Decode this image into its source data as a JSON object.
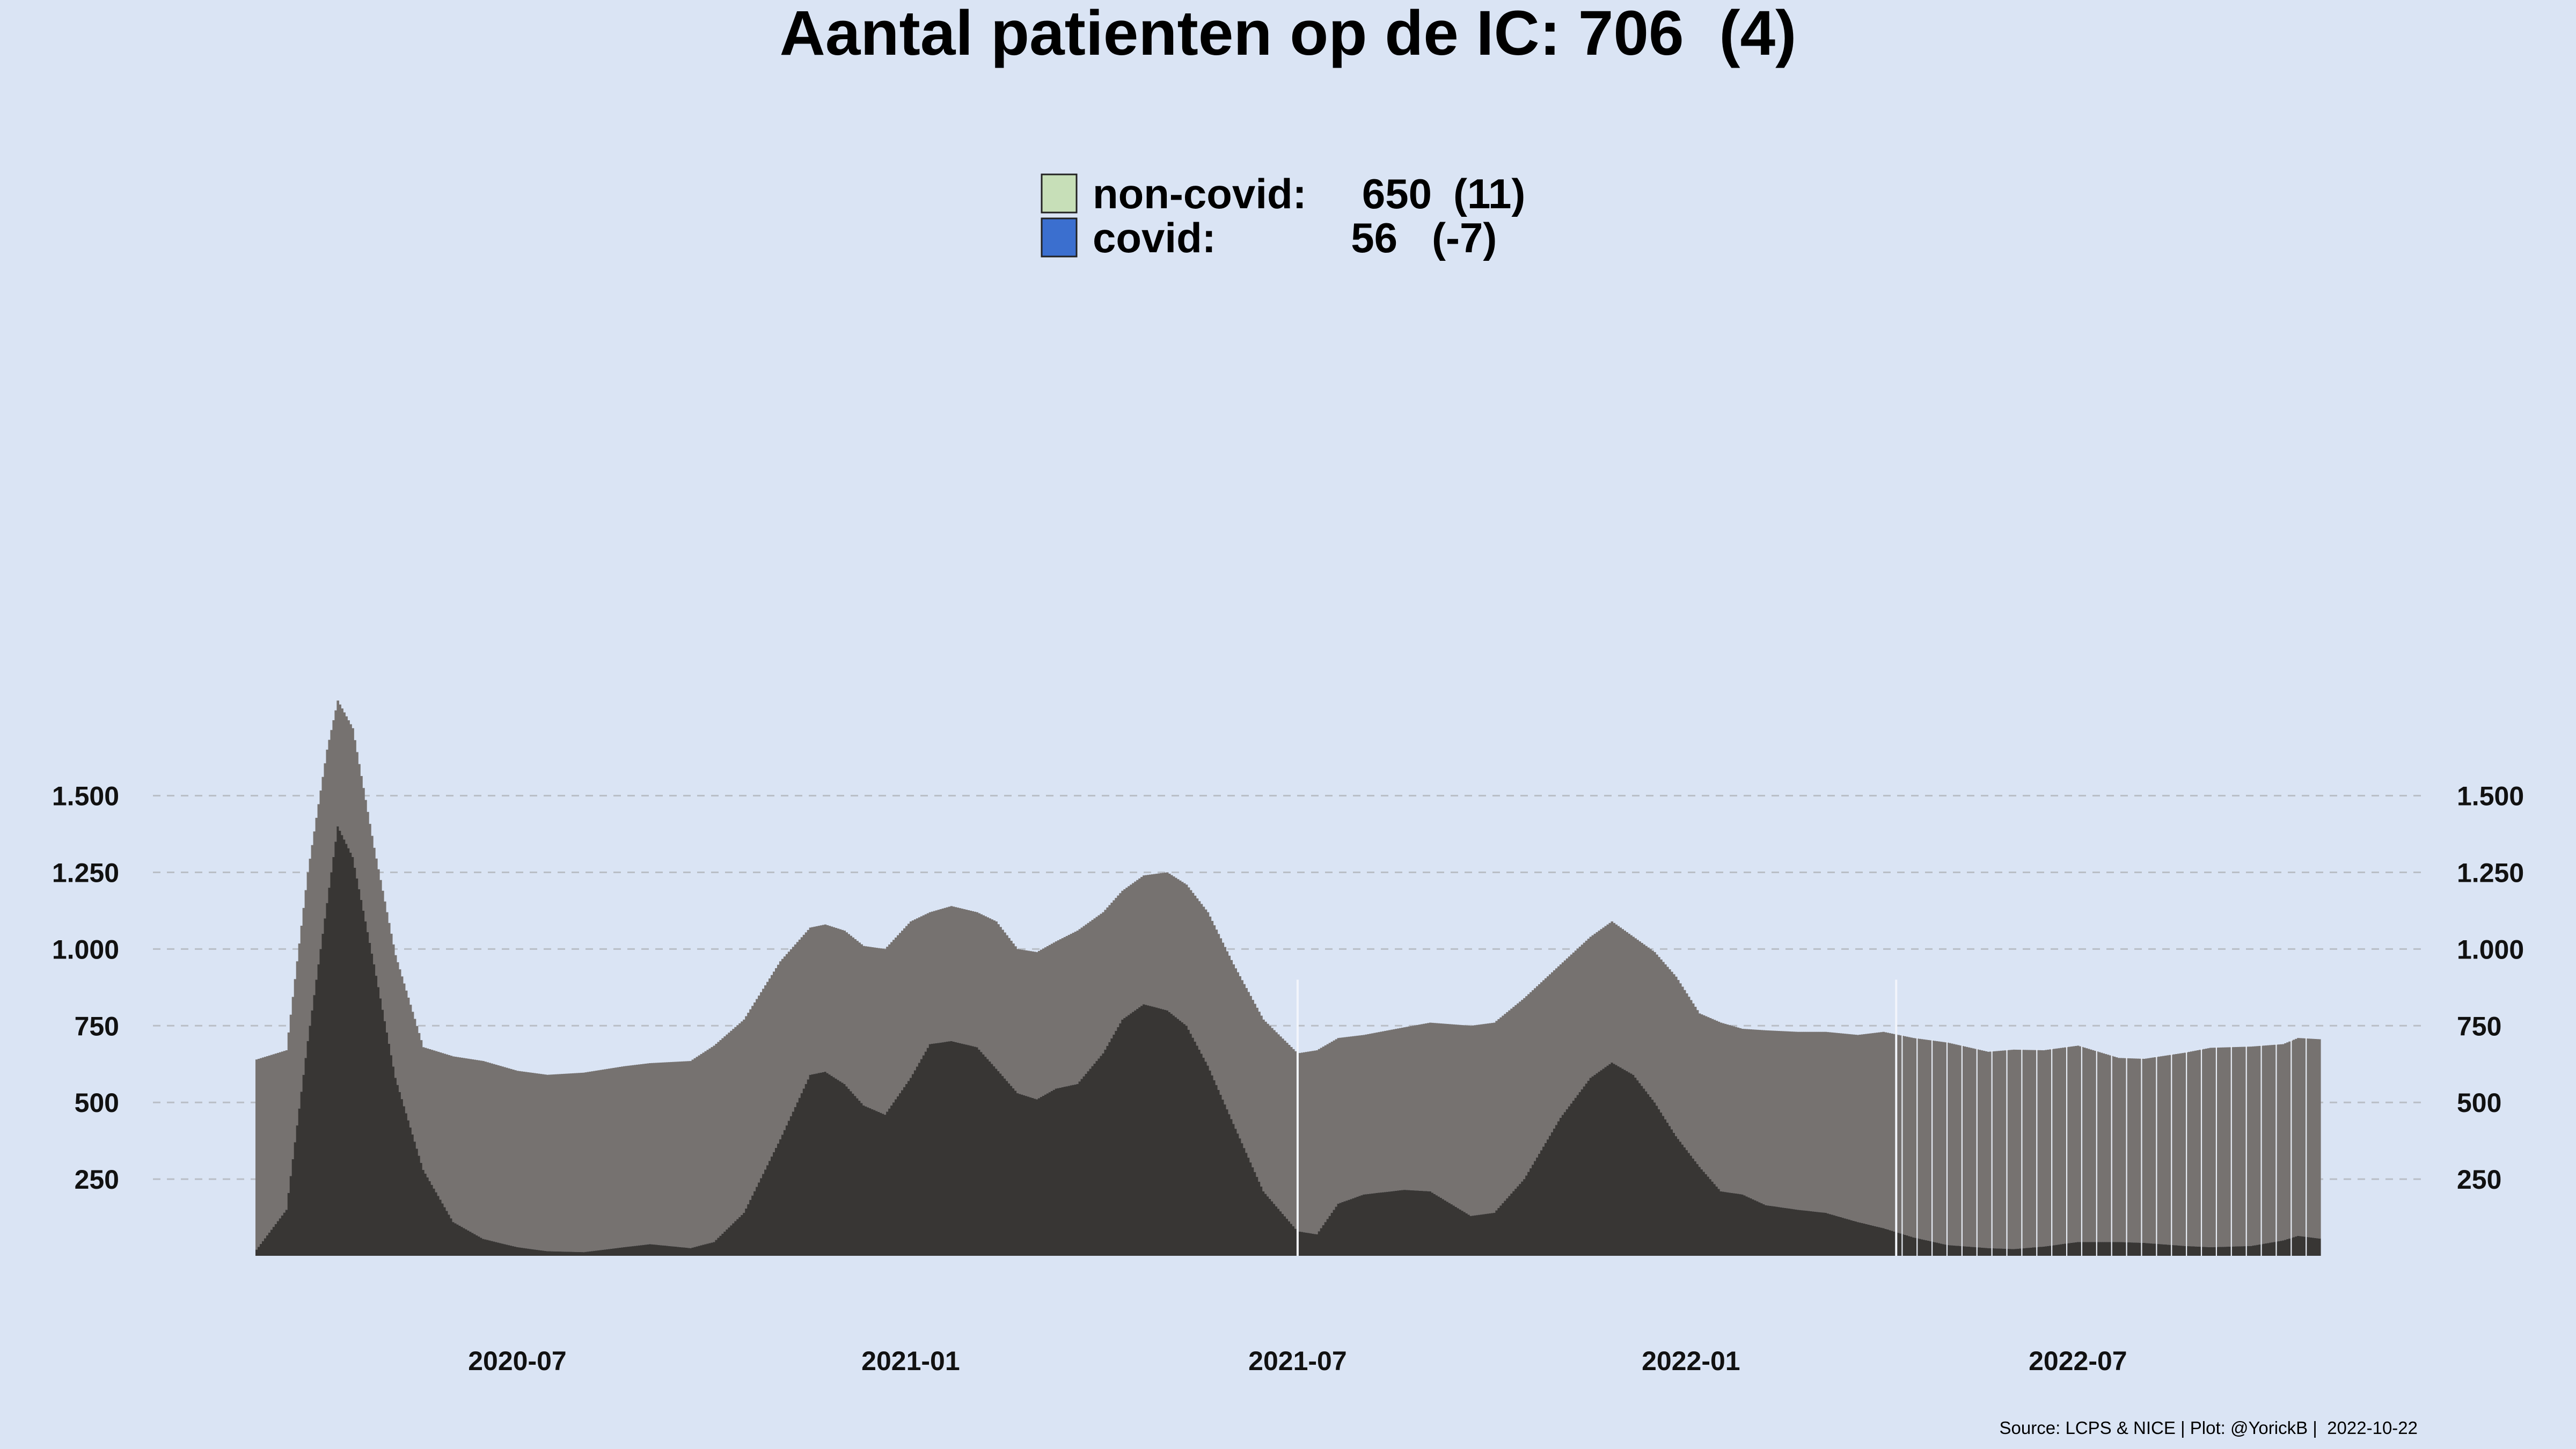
{
  "chart_data": {
    "type": "bar",
    "stacked": true,
    "title": "Aantal patienten op de IC: 706  (4)",
    "xlabel": "",
    "ylabel": "",
    "ylim": [
      0,
      1800
    ],
    "y_ticks": [
      250,
      500,
      750,
      1000,
      1250,
      1500
    ],
    "y_tick_labels": [
      "250",
      "500",
      "750",
      "1.000",
      "1.250",
      "1.500"
    ],
    "x_ticks": [
      "2020-07-01",
      "2021-01-01",
      "2021-07-01",
      "2022-01-01",
      "2022-07-01"
    ],
    "x_tick_labels": [
      "2020-07",
      "2021-01",
      "2021-07",
      "2022-01",
      "2022-07"
    ],
    "x_start": "2020-03-01",
    "x_end": "2022-10-22",
    "grid": true,
    "legend_position": "top-center",
    "caption": "Source: LCPS & NICE | Plot: @YorickB |  2022-10-22",
    "legend": [
      {
        "label": "non-covid:",
        "value": "650",
        "change": "(11)",
        "color": "#c7dfb8"
      },
      {
        "label": "covid:",
        "value": "56",
        "change": "(-7)",
        "color": "#3b6fcf"
      }
    ],
    "series": [
      {
        "name": "covid",
        "color": "#383634",
        "knots": [
          [
            "2020-03-01",
            20
          ],
          [
            "2020-03-15",
            150
          ],
          [
            "2020-03-25",
            700
          ],
          [
            "2020-04-03",
            1150
          ],
          [
            "2020-04-08",
            1400
          ],
          [
            "2020-04-15",
            1300
          ],
          [
            "2020-04-25",
            950
          ],
          [
            "2020-05-05",
            580
          ],
          [
            "2020-05-18",
            280
          ],
          [
            "2020-06-01",
            110
          ],
          [
            "2020-06-15",
            55
          ],
          [
            "2020-07-01",
            28
          ],
          [
            "2020-07-15",
            15
          ],
          [
            "2020-08-01",
            12
          ],
          [
            "2020-08-20",
            28
          ],
          [
            "2020-09-01",
            38
          ],
          [
            "2020-09-20",
            25
          ],
          [
            "2020-10-01",
            45
          ],
          [
            "2020-10-15",
            140
          ],
          [
            "2020-11-01",
            380
          ],
          [
            "2020-11-15",
            590
          ],
          [
            "2020-11-22",
            600
          ],
          [
            "2020-12-01",
            560
          ],
          [
            "2020-12-10",
            490
          ],
          [
            "2020-12-20",
            460
          ],
          [
            "2021-01-01",
            580
          ],
          [
            "2021-01-10",
            690
          ],
          [
            "2021-01-20",
            700
          ],
          [
            "2021-02-01",
            680
          ],
          [
            "2021-02-10",
            610
          ],
          [
            "2021-02-20",
            530
          ],
          [
            "2021-03-01",
            510
          ],
          [
            "2021-03-10",
            545
          ],
          [
            "2021-03-20",
            560
          ],
          [
            "2021-04-01",
            660
          ],
          [
            "2021-04-10",
            770
          ],
          [
            "2021-04-20",
            820
          ],
          [
            "2021-05-01",
            800
          ],
          [
            "2021-05-10",
            750
          ],
          [
            "2021-05-20",
            620
          ],
          [
            "2021-06-01",
            430
          ],
          [
            "2021-06-15",
            210
          ],
          [
            "2021-07-01",
            80
          ],
          [
            "2021-07-10",
            70
          ],
          [
            "2021-07-20",
            170
          ],
          [
            "2021-08-01",
            200
          ],
          [
            "2021-08-20",
            215
          ],
          [
            "2021-09-01",
            210
          ],
          [
            "2021-09-20",
            130
          ],
          [
            "2021-10-01",
            140
          ],
          [
            "2021-10-15",
            250
          ],
          [
            "2021-11-01",
            450
          ],
          [
            "2021-11-15",
            580
          ],
          [
            "2021-11-25",
            630
          ],
          [
            "2021-12-05",
            590
          ],
          [
            "2021-12-15",
            500
          ],
          [
            "2021-12-25",
            390
          ],
          [
            "2022-01-05",
            290
          ],
          [
            "2022-01-15",
            210
          ],
          [
            "2022-01-25",
            200
          ],
          [
            "2022-02-05",
            165
          ],
          [
            "2022-02-20",
            150
          ],
          [
            "2022-03-05",
            140
          ],
          [
            "2022-03-20",
            110
          ],
          [
            "2022-04-01",
            90
          ],
          [
            "2022-04-15",
            60
          ],
          [
            "2022-05-01",
            35
          ],
          [
            "2022-05-20",
            25
          ],
          [
            "2022-06-01",
            22
          ],
          [
            "2022-06-15",
            30
          ],
          [
            "2022-07-01",
            45
          ],
          [
            "2022-07-20",
            45
          ],
          [
            "2022-08-01",
            42
          ],
          [
            "2022-08-20",
            32
          ],
          [
            "2022-09-01",
            28
          ],
          [
            "2022-09-20",
            32
          ],
          [
            "2022-10-05",
            50
          ],
          [
            "2022-10-12",
            65
          ],
          [
            "2022-10-22",
            56
          ]
        ]
      },
      {
        "name": "non-covid",
        "color": "#767270",
        "knots": [
          [
            "2020-03-01",
            620
          ],
          [
            "2020-03-15",
            520
          ],
          [
            "2020-03-25",
            550
          ],
          [
            "2020-04-03",
            500
          ],
          [
            "2020-04-08",
            410
          ],
          [
            "2020-04-15",
            420
          ],
          [
            "2020-04-25",
            380
          ],
          [
            "2020-05-05",
            400
          ],
          [
            "2020-05-18",
            400
          ],
          [
            "2020-06-01",
            540
          ],
          [
            "2020-06-15",
            580
          ],
          [
            "2020-07-01",
            575
          ],
          [
            "2020-07-15",
            575
          ],
          [
            "2020-08-01",
            585
          ],
          [
            "2020-08-20",
            590
          ],
          [
            "2020-09-01",
            590
          ],
          [
            "2020-09-20",
            610
          ],
          [
            "2020-10-01",
            640
          ],
          [
            "2020-10-15",
            630
          ],
          [
            "2020-11-01",
            580
          ],
          [
            "2020-11-15",
            480
          ],
          [
            "2020-11-22",
            480
          ],
          [
            "2020-12-01",
            500
          ],
          [
            "2020-12-10",
            520
          ],
          [
            "2020-12-20",
            540
          ],
          [
            "2021-01-01",
            510
          ],
          [
            "2021-01-10",
            430
          ],
          [
            "2021-01-20",
            440
          ],
          [
            "2021-02-01",
            440
          ],
          [
            "2021-02-10",
            480
          ],
          [
            "2021-02-20",
            470
          ],
          [
            "2021-03-01",
            480
          ],
          [
            "2021-03-10",
            480
          ],
          [
            "2021-03-20",
            500
          ],
          [
            "2021-04-01",
            460
          ],
          [
            "2021-04-10",
            420
          ],
          [
            "2021-04-20",
            420
          ],
          [
            "2021-05-01",
            450
          ],
          [
            "2021-05-10",
            460
          ],
          [
            "2021-05-20",
            500
          ],
          [
            "2021-06-01",
            520
          ],
          [
            "2021-06-15",
            560
          ],
          [
            "2021-07-01",
            580
          ],
          [
            "2021-07-10",
            600
          ],
          [
            "2021-07-20",
            540
          ],
          [
            "2021-08-01",
            520
          ],
          [
            "2021-08-20",
            530
          ],
          [
            "2021-09-01",
            550
          ],
          [
            "2021-09-20",
            620
          ],
          [
            "2021-10-01",
            620
          ],
          [
            "2021-10-15",
            590
          ],
          [
            "2021-11-01",
            500
          ],
          [
            "2021-11-15",
            460
          ],
          [
            "2021-11-25",
            460
          ],
          [
            "2021-12-05",
            450
          ],
          [
            "2021-12-15",
            490
          ],
          [
            "2021-12-25",
            520
          ],
          [
            "2022-01-05",
            500
          ],
          [
            "2022-01-15",
            550
          ],
          [
            "2022-01-25",
            540
          ],
          [
            "2022-02-05",
            570
          ],
          [
            "2022-02-20",
            580
          ],
          [
            "2022-03-05",
            590
          ],
          [
            "2022-03-20",
            610
          ],
          [
            "2022-04-01",
            640
          ],
          [
            "2022-04-15",
            650
          ],
          [
            "2022-05-01",
            660
          ],
          [
            "2022-05-20",
            640
          ],
          [
            "2022-06-01",
            650
          ],
          [
            "2022-06-15",
            640
          ],
          [
            "2022-07-01",
            640
          ],
          [
            "2022-07-20",
            600
          ],
          [
            "2022-08-01",
            600
          ],
          [
            "2022-08-20",
            630
          ],
          [
            "2022-09-01",
            650
          ],
          [
            "2022-09-20",
            650
          ],
          [
            "2022-10-05",
            640
          ],
          [
            "2022-10-12",
            645
          ],
          [
            "2022-10-22",
            650
          ]
        ]
      }
    ]
  }
}
